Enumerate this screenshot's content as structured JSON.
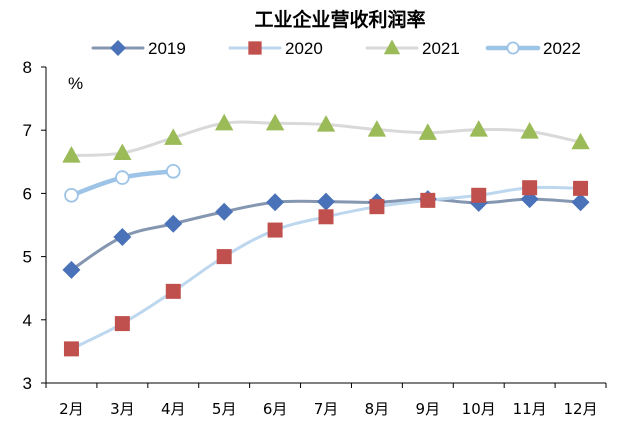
{
  "chart_data": {
    "type": "line",
    "title": "工业企业营收利润率",
    "unit_label": "%",
    "ylim": [
      3,
      8
    ],
    "yticks": [
      3,
      4,
      5,
      6,
      7,
      8
    ],
    "x": [
      "2月",
      "3月",
      "4月",
      "5月",
      "6月",
      "7月",
      "8月",
      "9月",
      "10月",
      "11月",
      "12月"
    ],
    "grid": false,
    "legend_position": "top",
    "series": [
      {
        "name": "2019",
        "marker": "diamond",
        "line_color": "#8496b0",
        "marker_color": "#4a72b8",
        "marker_edge": "#4a72b8",
        "values": [
          4.79,
          5.31,
          5.52,
          5.71,
          5.86,
          5.87,
          5.86,
          5.91,
          5.85,
          5.91,
          5.86
        ]
      },
      {
        "name": "2020",
        "marker": "square",
        "line_color": "#bdd7ee",
        "marker_color": "#c0504d",
        "marker_edge": "#c0504d",
        "values": [
          3.54,
          3.94,
          4.45,
          5.0,
          5.42,
          5.63,
          5.79,
          5.89,
          5.97,
          6.09,
          6.08
        ]
      },
      {
        "name": "2021",
        "marker": "triangle",
        "line_color": "#d9d9d9",
        "marker_color": "#9bbb59",
        "marker_edge": "#9bbb59",
        "values": [
          6.6,
          6.64,
          6.88,
          7.11,
          7.11,
          7.09,
          7.01,
          6.96,
          7.01,
          6.98,
          6.81
        ]
      },
      {
        "name": "2022",
        "marker": "circle",
        "line_color": "#9dc3e6",
        "marker_color": "#ffffff",
        "marker_edge": "#9dc3e6",
        "values": [
          5.97,
          6.25,
          6.35,
          null,
          null,
          null,
          null,
          null,
          null,
          null,
          null
        ]
      }
    ]
  }
}
